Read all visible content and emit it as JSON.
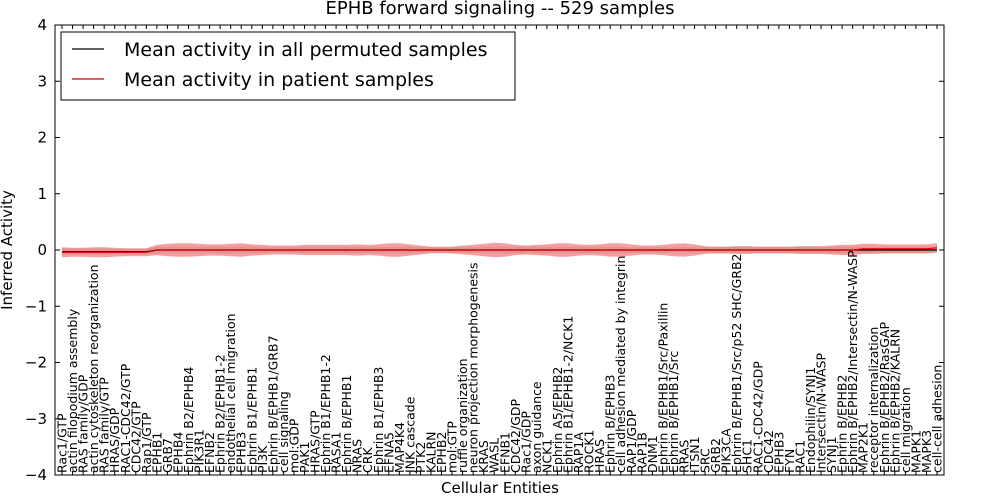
{
  "chart_data": {
    "type": "line",
    "title": "EPHB forward signaling -- 529 samples",
    "xlabel": "Cellular Entities",
    "ylabel": "Inferred Activity",
    "ylim": [
      -4,
      4
    ],
    "yticks": [
      -4,
      -3,
      -2,
      -1,
      0,
      1,
      2,
      3,
      4
    ],
    "ytick_labels": [
      "−4",
      "−3",
      "−2",
      "−1",
      "0",
      "1",
      "2",
      "3",
      "4"
    ],
    "legend": {
      "position": "top-left"
    },
    "categories": [
      "Rac1/GTP",
      "actin filopodium assembly",
      "RAS family/GDP",
      "actin cytoskeleton reorganization",
      "RAS family/GTP",
      "HRAS/GDP",
      "RAC1-CDC42/GTP",
      "CDC42/GTP",
      "Rap1/GTP",
      "EPHB1",
      "GRB7",
      "EPHB4",
      "Ephrin B2/EPHB4",
      "PIK3R1",
      "EFNB2",
      "Ephrin B2/EPHB1-2",
      "endothelial cell migration",
      "EPHB3",
      "Ephrin B1/EPHB1",
      "PI3K",
      "Ephrin B/EPHB1/GRB7",
      "cell signaling",
      "mol:GDP",
      "PAK1",
      "HRAS/GTP",
      "Ephrin B1/EPHB1-2",
      "RASA1",
      "Ephrin B/EPHB1",
      "NRAS",
      "CRK",
      "Ephrin B1/EPHB3",
      "EFNA5",
      "MAP4K4",
      "JNK cascade",
      "PTK2",
      "KALRN",
      "EPHB2",
      "mol:GTP",
      "ruffle organization",
      "neuron projection morphogenesis",
      "KRAS",
      "WASL",
      "EFNB1",
      "CDC42/GDP",
      "Rac1/GDP",
      "axon guidance",
      "NCK1",
      "Ephrin A5/EPHB2",
      "Ephrin B1/EPHB1-2/NCK1",
      "RAP1A",
      "ROCK1",
      "HRAS",
      "Ephrin B/EPHB3",
      "cell adhesion mediated by integrin",
      "RAP1/GDP",
      "RAP1B",
      "DNM1",
      "Ephrin B/EPHB1/Src/Paxillin",
      "Ephrin B/EPHB1/Src",
      "RRAS",
      "ITSN1",
      "SRC",
      "GRB2",
      "PIK3CA",
      "Ephrin B/EPHB1/Src/p52 SHC/GRB2",
      "SHC1",
      "RAC1-CDC42/GDP",
      "CDC42",
      "EPHB3",
      "FYN",
      "RAC1",
      "Endophilin/SYNJ1",
      "Intersectin/N-WASP",
      "SYNJ1",
      "Ephrin B/EPHB2",
      "Ephrin B/EPHB2/Intersectin/N-WASP",
      "MAP2K1",
      "receptor internalization",
      "Ephrin B/EPHB2/RasGAP",
      "Ephrin B/EPHB2/KALRN",
      "cell migration",
      "MAPK1",
      "MAPK3",
      "cell-cell adhesion"
    ],
    "series": [
      {
        "name": "Mean activity in all permuted samples",
        "color": "#000000",
        "band_color": "#bbbbbb",
        "values": [
          -0.03,
          -0.03,
          -0.03,
          -0.03,
          -0.03,
          -0.03,
          -0.03,
          -0.03,
          -0.03,
          0.0,
          0.0,
          0.0,
          0.0,
          0.0,
          0.0,
          0.0,
          0.0,
          0.0,
          0.0,
          0.0,
          0.0,
          0.0,
          0.0,
          0.0,
          0.0,
          0.0,
          0.0,
          0.0,
          0.0,
          0.0,
          0.0,
          0.0,
          0.0,
          0.0,
          0.0,
          0.0,
          0.0,
          0.0,
          0.0,
          0.0,
          0.0,
          0.0,
          0.0,
          0.0,
          0.0,
          0.0,
          0.0,
          0.0,
          0.0,
          0.0,
          0.0,
          0.0,
          0.0,
          0.0,
          0.0,
          0.0,
          0.0,
          0.0,
          0.0,
          0.0,
          0.0,
          0.0,
          0.0,
          0.0,
          0.0,
          0.0,
          0.0,
          0.0,
          0.0,
          0.0,
          0.0,
          0.0,
          0.0,
          0.0,
          0.0,
          0.0,
          0.0,
          0.0,
          0.0,
          0.0,
          0.0,
          0.0,
          0.0,
          0.0
        ],
        "spread": [
          0.06,
          0.06,
          0.06,
          0.06,
          0.06,
          0.05,
          0.05,
          0.05,
          0.05,
          0.06,
          0.06,
          0.06,
          0.06,
          0.06,
          0.06,
          0.06,
          0.06,
          0.06,
          0.06,
          0.05,
          0.05,
          0.05,
          0.05,
          0.06,
          0.06,
          0.06,
          0.06,
          0.06,
          0.06,
          0.06,
          0.06,
          0.06,
          0.06,
          0.06,
          0.05,
          0.05,
          0.05,
          0.05,
          0.05,
          0.05,
          0.06,
          0.06,
          0.06,
          0.06,
          0.06,
          0.06,
          0.06,
          0.06,
          0.06,
          0.06,
          0.06,
          0.06,
          0.06,
          0.06,
          0.05,
          0.05,
          0.05,
          0.05,
          0.05,
          0.05,
          0.05,
          0.05,
          0.06,
          0.06,
          0.06,
          0.06,
          0.06,
          0.06,
          0.06,
          0.06,
          0.06,
          0.06,
          0.06,
          0.06,
          0.06,
          0.06,
          0.06,
          0.06,
          0.06,
          0.06,
          0.06,
          0.06,
          0.06,
          0.06
        ]
      },
      {
        "name": "Mean activity in patient samples",
        "color": "#dd0000",
        "band_color": "#ee4444",
        "values": [
          -0.04,
          -0.04,
          -0.04,
          -0.04,
          -0.04,
          -0.04,
          -0.04,
          -0.04,
          -0.04,
          0.0,
          0.0,
          0.0,
          0.0,
          0.0,
          0.0,
          0.0,
          0.0,
          0.0,
          0.0,
          0.0,
          0.0,
          0.0,
          0.0,
          0.0,
          0.0,
          0.0,
          0.0,
          0.0,
          0.0,
          0.0,
          0.0,
          0.0,
          0.0,
          0.0,
          0.0,
          0.0,
          0.0,
          0.0,
          0.0,
          0.0,
          0.0,
          0.0,
          0.0,
          0.0,
          0.0,
          0.0,
          0.0,
          0.0,
          0.0,
          0.0,
          0.0,
          0.0,
          0.0,
          0.0,
          0.0,
          0.0,
          0.0,
          0.0,
          0.0,
          0.0,
          0.0,
          0.0,
          0.0,
          0.0,
          0.0,
          0.0,
          0.0,
          0.0,
          0.0,
          0.0,
          0.0,
          0.0,
          0.0,
          0.0,
          0.0,
          0.0,
          0.02,
          0.02,
          0.02,
          0.02,
          0.02,
          0.02,
          0.02,
          0.04
        ],
        "spread": [
          0.09,
          0.08,
          0.08,
          0.09,
          0.09,
          0.08,
          0.07,
          0.07,
          0.07,
          0.09,
          0.11,
          0.12,
          0.12,
          0.11,
          0.1,
          0.1,
          0.11,
          0.12,
          0.1,
          0.09,
          0.08,
          0.08,
          0.08,
          0.09,
          0.09,
          0.09,
          0.09,
          0.09,
          0.1,
          0.09,
          0.1,
          0.12,
          0.12,
          0.1,
          0.08,
          0.06,
          0.06,
          0.06,
          0.08,
          0.09,
          0.11,
          0.13,
          0.12,
          0.09,
          0.08,
          0.09,
          0.1,
          0.12,
          0.12,
          0.1,
          0.09,
          0.1,
          0.12,
          0.12,
          0.1,
          0.08,
          0.08,
          0.09,
          0.11,
          0.12,
          0.1,
          0.07,
          0.06,
          0.06,
          0.07,
          0.07,
          0.06,
          0.06,
          0.06,
          0.06,
          0.07,
          0.07,
          0.07,
          0.08,
          0.09,
          0.09,
          0.09,
          0.09,
          0.08,
          0.08,
          0.08,
          0.08,
          0.08,
          0.08
        ]
      }
    ]
  }
}
